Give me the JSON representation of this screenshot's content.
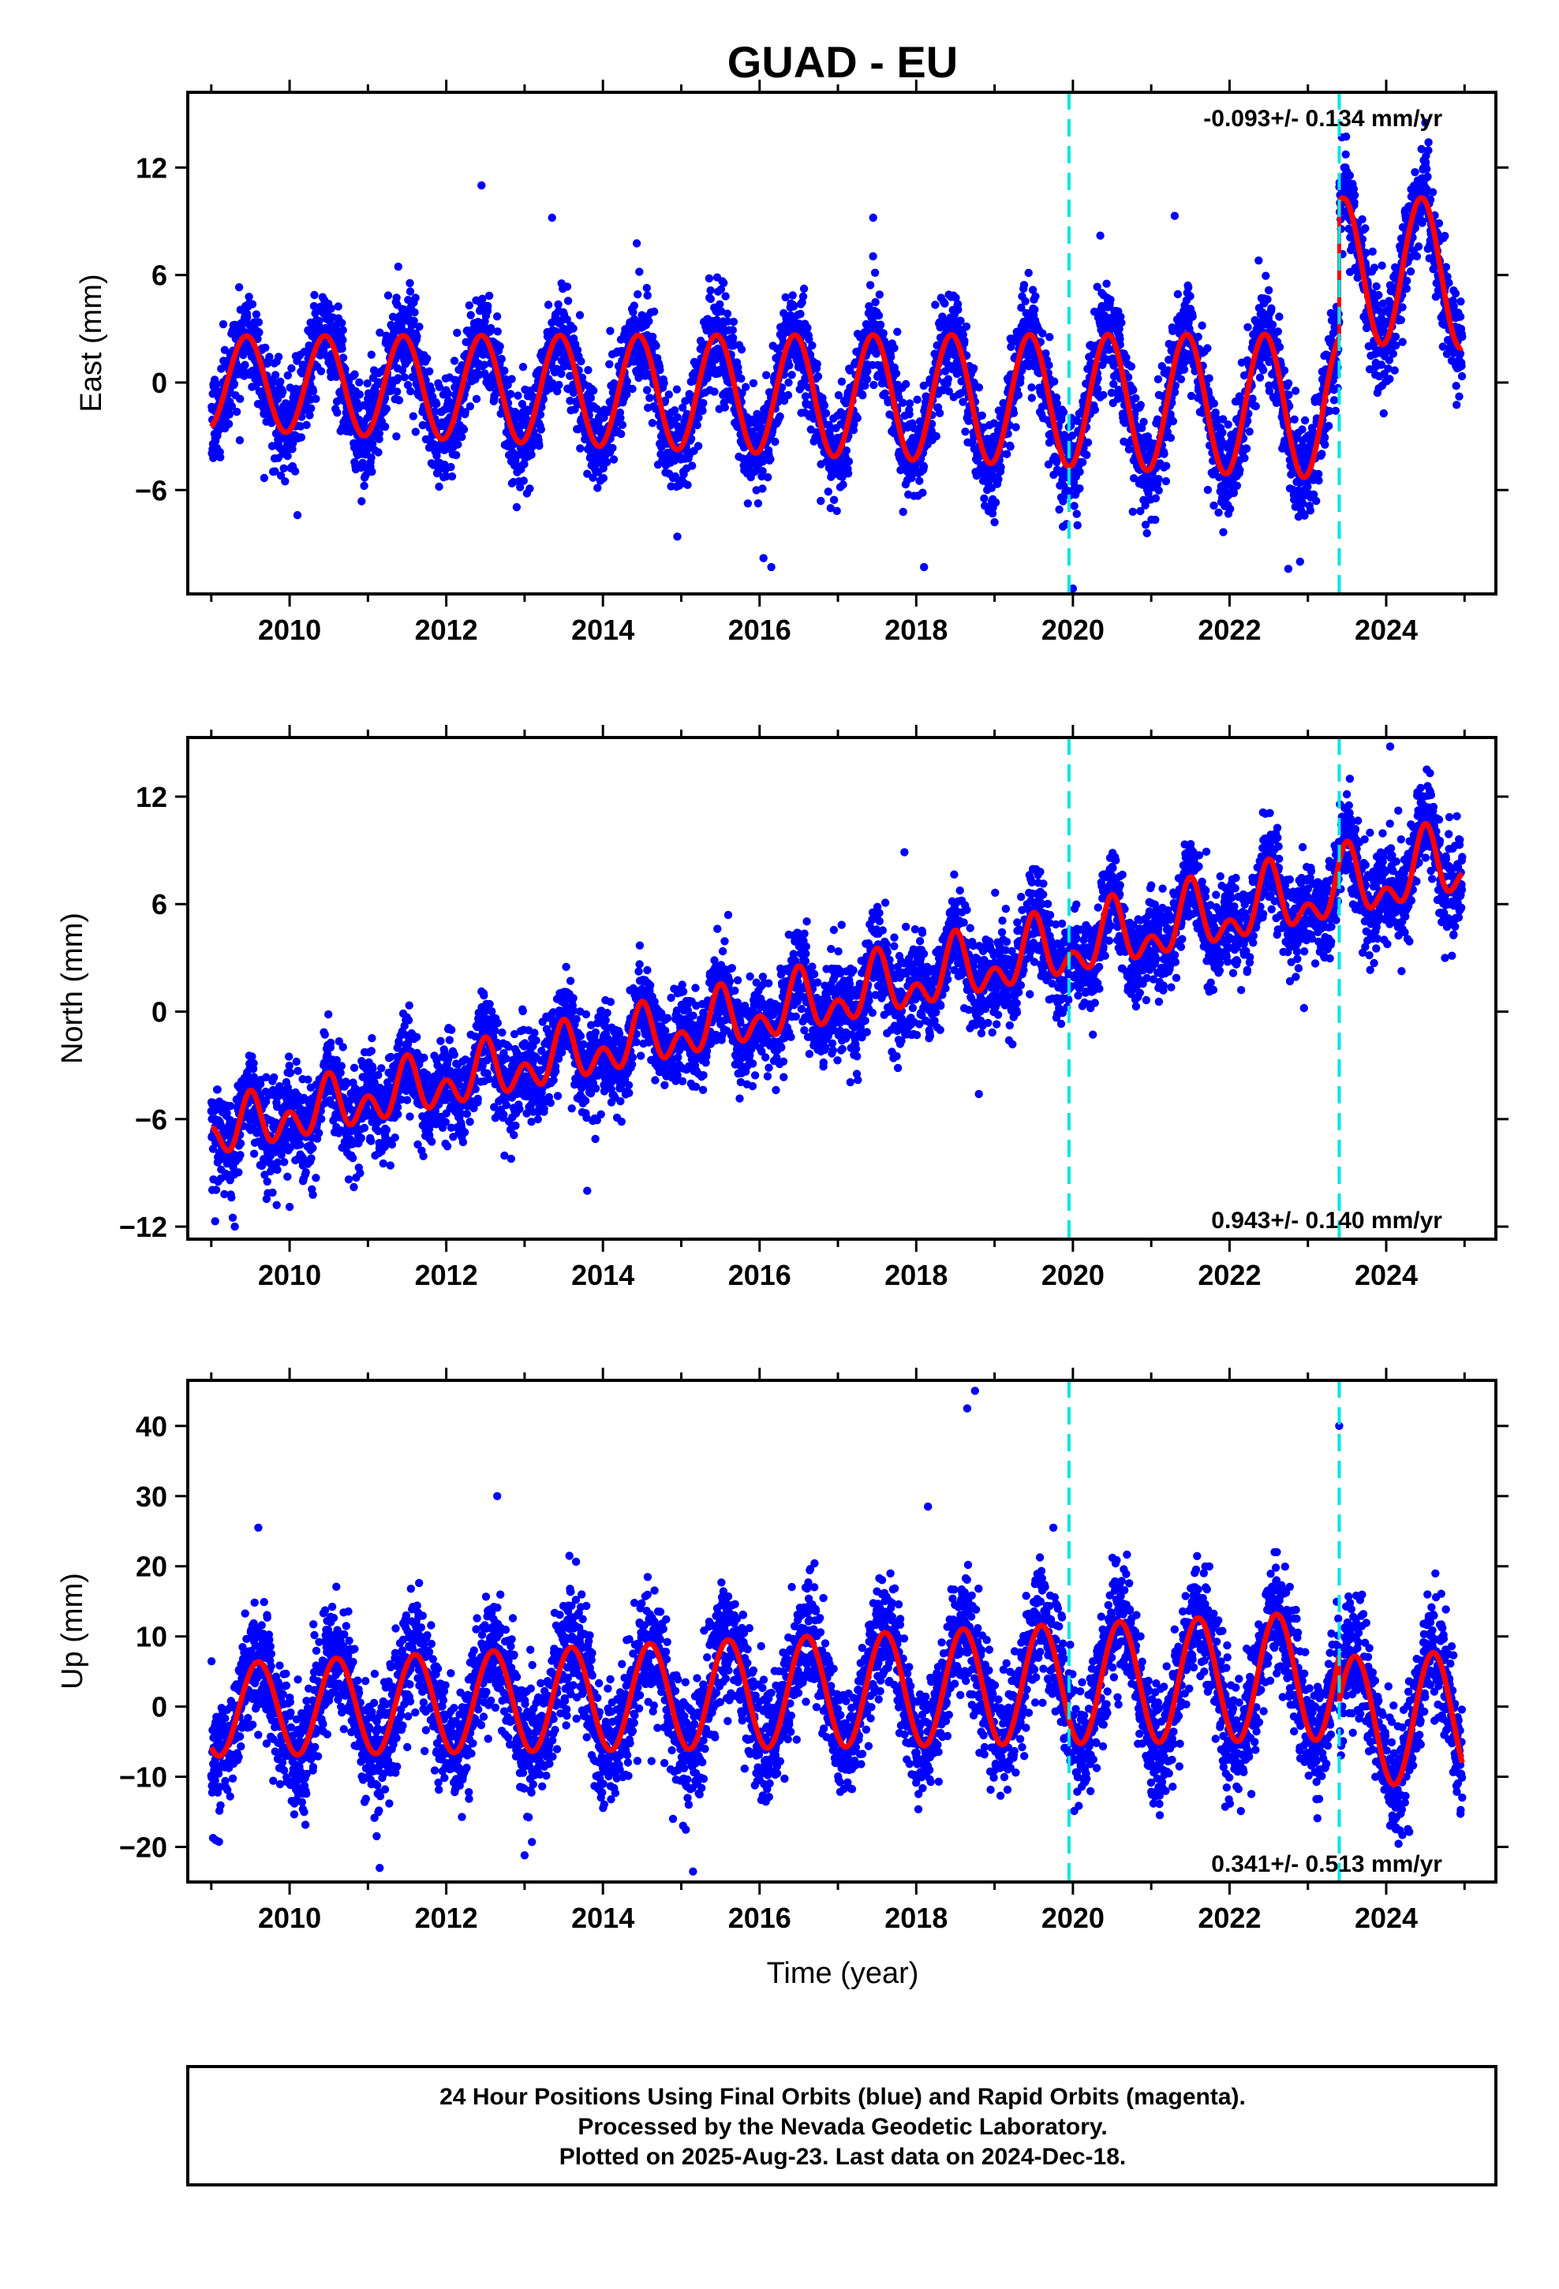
{
  "title": "GUAD - EU",
  "xlabel": "Time (year)",
  "colors": {
    "points": "#0000ff",
    "fit": "#ff0000",
    "events": "#00e5e5",
    "frame": "#000000"
  },
  "footer": [
    "24 Hour Positions Using Final Orbits (blue) and Rapid Orbits (magenta).",
    "Processed by the Nevada Geodetic Laboratory.",
    "Plotted on 2025-Aug-23. Last data on 2024-Dec-18."
  ],
  "chart_data": [
    {
      "type": "scatter",
      "name": "east",
      "ylabel": "East (mm)",
      "xlim": [
        2008.7,
        2025.4
      ],
      "ylim": [
        -11.8,
        16.2
      ],
      "xticks": [
        2010,
        2012,
        2014,
        2016,
        2018,
        2020,
        2022,
        2024
      ],
      "yticks": [
        -6,
        0,
        6,
        12
      ],
      "events": [
        2019.95,
        2023.4
      ],
      "rate_label": "-0.093+/- 0.134 mm/yr",
      "rate_position": "top-right",
      "fit": {
        "start": 2009.0,
        "end": 2024.97,
        "offset": 0.0,
        "trend": -0.093,
        "amp": 3.4,
        "amp_change": 0.1,
        "peak_phase": 0.45,
        "semi_amp": 0.0,
        "steps": [
          [
            2023.4,
            7.6
          ]
        ],
        "noise": 1.35
      },
      "outliers": [
        [
          2012.45,
          11.0
        ],
        [
          2013.35,
          9.2
        ],
        [
          2017.45,
          9.2
        ],
        [
          2020.35,
          8.2
        ],
        [
          2021.3,
          9.3
        ],
        [
          2014.95,
          -8.6
        ],
        [
          2016.05,
          -9.8
        ],
        [
          2016.15,
          -10.3
        ],
        [
          2018.1,
          -10.3
        ],
        [
          2019.0,
          -7.8
        ],
        [
          2020.0,
          -11.5
        ],
        [
          2022.75,
          -10.4
        ],
        [
          2022.9,
          -10.0
        ],
        [
          2024.5,
          14.5
        ],
        [
          2010.1,
          -7.4
        ]
      ]
    },
    {
      "type": "scatter",
      "name": "north",
      "ylabel": "North (mm)",
      "xlim": [
        2008.7,
        2025.4
      ],
      "ylim": [
        -12.7,
        15.3
      ],
      "xticks": [
        2010,
        2012,
        2014,
        2016,
        2018,
        2020,
        2022,
        2024
      ],
      "yticks": [
        -12,
        -6,
        0,
        6,
        12
      ],
      "events": [
        2019.95,
        2023.4
      ],
      "rate_label": "0.943+/- 0.140 mm/yr",
      "rate_position": "bottom-right",
      "fit": {
        "start": 2009.0,
        "end": 2024.97,
        "offset": -6.8,
        "trend": 0.943,
        "amp": 1.2,
        "amp_change": 0.05,
        "peak_phase": 0.5,
        "semi_amp": 1.1,
        "steps": [],
        "noise": 1.3
      },
      "outliers": [
        [
          2009.05,
          -11.7
        ],
        [
          2009.3,
          -12.0
        ],
        [
          2013.8,
          -10.0
        ],
        [
          2015.6,
          5.4
        ],
        [
          2017.85,
          8.9
        ],
        [
          2018.8,
          -4.6
        ],
        [
          2022.95,
          0.2
        ],
        [
          2024.05,
          14.8
        ],
        [
          2024.75,
          3.0
        ],
        [
          2010.0,
          -10.9
        ]
      ]
    },
    {
      "type": "scatter",
      "name": "up",
      "ylabel": "Up (mm)",
      "xlim": [
        2008.7,
        2025.4
      ],
      "ylim": [
        -25.0,
        46.5
      ],
      "xticks": [
        2010,
        2012,
        2014,
        2016,
        2018,
        2020,
        2022,
        2024
      ],
      "yticks": [
        -20,
        -10,
        0,
        10,
        20,
        30,
        40
      ],
      "events": [
        2019.95,
        2023.4
      ],
      "rate_label": "0.341+/- 0.513 mm/yr",
      "rate_position": "bottom-right",
      "fit": {
        "start": 2009.0,
        "end": 2024.97,
        "offset": -0.5,
        "trend": 0.341,
        "amp": 8.0,
        "amp_change": 0.18,
        "peak_phase": 0.6,
        "semi_amp": 0.0,
        "steps": [
          [
            2023.4,
            -6.5
          ]
        ],
        "noise": 4.2
      },
      "outliers": [
        [
          2012.65,
          30.0
        ],
        [
          2018.65,
          42.5
        ],
        [
          2018.75,
          45.0
        ],
        [
          2018.15,
          28.5
        ],
        [
          2023.4,
          40.0
        ],
        [
          2011.15,
          -23.0
        ],
        [
          2013.0,
          -21.2
        ],
        [
          2015.15,
          -23.5
        ],
        [
          2019.75,
          25.5
        ],
        [
          2009.6,
          25.5
        ]
      ]
    }
  ]
}
